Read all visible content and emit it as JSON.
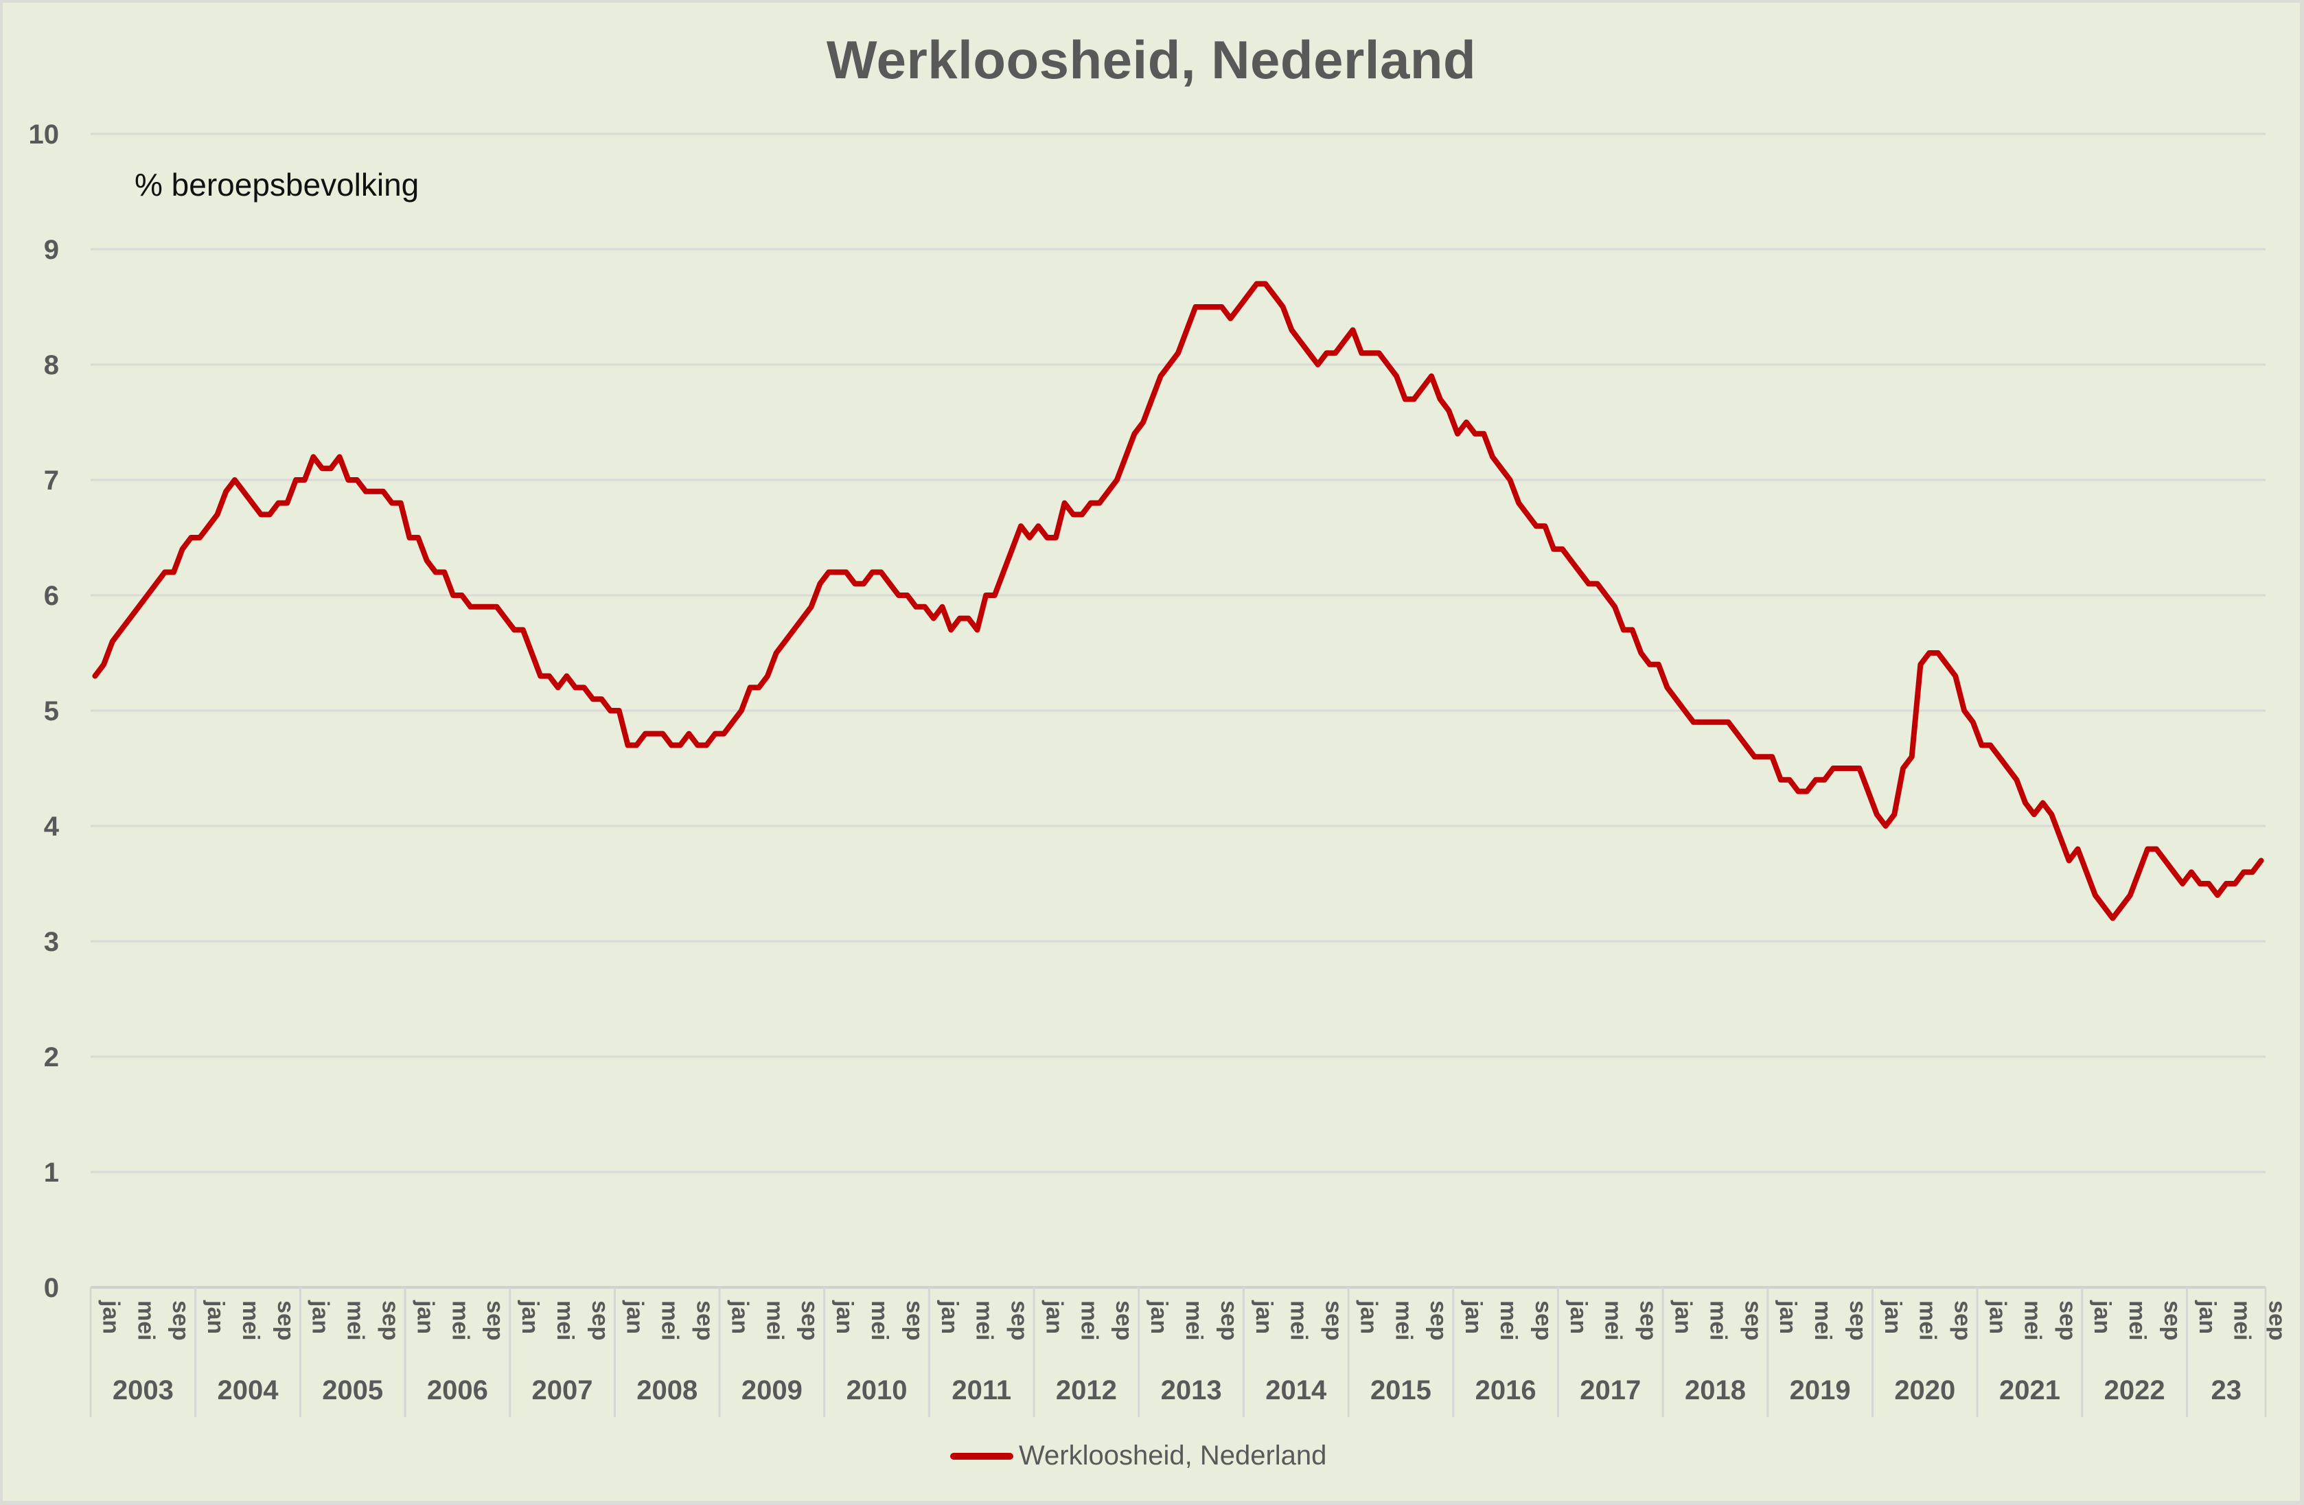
{
  "chart_data": {
    "type": "line",
    "title": "Werkloosheid, Nederland",
    "annotation": "% beroepsbevolking",
    "xlabel": "",
    "ylabel": "% beroepsbevolking",
    "ylim": [
      0,
      10
    ],
    "yticks": [
      0,
      1,
      2,
      3,
      4,
      5,
      6,
      7,
      8,
      9,
      10
    ],
    "grid": true,
    "legend_position": "bottom",
    "month_tick_labels": [
      "jan",
      "mei",
      "sep"
    ],
    "year_labels": [
      "2003",
      "2004",
      "2005",
      "2006",
      "2007",
      "2008",
      "2009",
      "2010",
      "2011",
      "2012",
      "2013",
      "2014",
      "2015",
      "2016",
      "2017",
      "2018",
      "2019",
      "2020",
      "2021",
      "2022",
      "23"
    ],
    "x_start": "2003-01",
    "x_end": "2023-09",
    "frequency": "monthly",
    "series": [
      {
        "name": "Werkloosheid, Nederland",
        "color": "#c00000",
        "values": [
          5.3,
          5.4,
          5.6,
          5.7,
          5.8,
          5.9,
          6.0,
          6.1,
          6.2,
          6.2,
          6.4,
          6.5,
          6.5,
          6.6,
          6.7,
          6.9,
          7.0,
          6.9,
          6.8,
          6.7,
          6.7,
          6.8,
          6.8,
          7.0,
          7.0,
          7.2,
          7.1,
          7.1,
          7.2,
          7.0,
          7.0,
          6.9,
          6.9,
          6.9,
          6.8,
          6.8,
          6.5,
          6.5,
          6.3,
          6.2,
          6.2,
          6.0,
          6.0,
          5.9,
          5.9,
          5.9,
          5.9,
          5.8,
          5.7,
          5.7,
          5.5,
          5.3,
          5.3,
          5.2,
          5.3,
          5.2,
          5.2,
          5.1,
          5.1,
          5.0,
          5.0,
          4.7,
          4.7,
          4.8,
          4.8,
          4.8,
          4.7,
          4.7,
          4.8,
          4.7,
          4.7,
          4.8,
          4.8,
          4.9,
          5.0,
          5.2,
          5.2,
          5.3,
          5.5,
          5.6,
          5.7,
          5.8,
          5.9,
          6.1,
          6.2,
          6.2,
          6.2,
          6.1,
          6.1,
          6.2,
          6.2,
          6.1,
          6.0,
          6.0,
          5.9,
          5.9,
          5.8,
          5.9,
          5.7,
          5.8,
          5.8,
          5.7,
          6.0,
          6.0,
          6.2,
          6.4,
          6.6,
          6.5,
          6.6,
          6.5,
          6.5,
          6.8,
          6.7,
          6.7,
          6.8,
          6.8,
          6.9,
          7.0,
          7.2,
          7.4,
          7.5,
          7.7,
          7.9,
          8.0,
          8.1,
          8.3,
          8.5,
          8.5,
          8.5,
          8.5,
          8.4,
          8.5,
          8.6,
          8.7,
          8.7,
          8.6,
          8.5,
          8.3,
          8.2,
          8.1,
          8.0,
          8.1,
          8.1,
          8.2,
          8.3,
          8.1,
          8.1,
          8.1,
          8.0,
          7.9,
          7.7,
          7.7,
          7.8,
          7.9,
          7.7,
          7.6,
          7.4,
          7.5,
          7.4,
          7.4,
          7.2,
          7.1,
          7.0,
          6.8,
          6.7,
          6.6,
          6.6,
          6.4,
          6.4,
          6.3,
          6.2,
          6.1,
          6.1,
          6.0,
          5.9,
          5.7,
          5.7,
          5.5,
          5.4,
          5.4,
          5.2,
          5.1,
          5.0,
          4.9,
          4.9,
          4.9,
          4.9,
          4.9,
          4.8,
          4.7,
          4.6,
          4.6,
          4.6,
          4.4,
          4.4,
          4.3,
          4.3,
          4.4,
          4.4,
          4.5,
          4.5,
          4.5,
          4.5,
          4.3,
          4.1,
          4.0,
          4.1,
          4.5,
          4.6,
          5.4,
          5.5,
          5.5,
          5.4,
          5.3,
          5.0,
          4.9,
          4.7,
          4.7,
          4.6,
          4.5,
          4.4,
          4.2,
          4.1,
          4.2,
          4.1,
          3.9,
          3.7,
          3.8,
          3.6,
          3.4,
          3.3,
          3.2,
          3.3,
          3.4,
          3.6,
          3.8,
          3.8,
          3.7,
          3.6,
          3.5,
          3.6,
          3.5,
          3.5,
          3.4,
          3.5,
          3.5,
          3.6,
          3.6,
          3.7
        ]
      }
    ]
  },
  "colors": {
    "background": "#e9eddb",
    "line": "#c00000",
    "grid": "#d9d9d9",
    "text": "#595959"
  }
}
